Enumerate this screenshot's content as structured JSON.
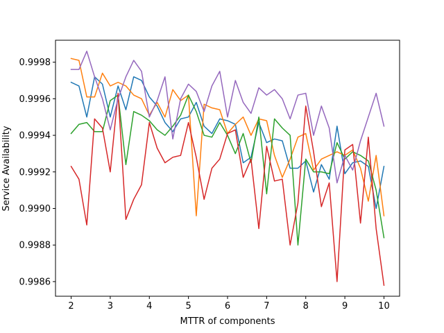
{
  "chart_data": {
    "type": "line",
    "title": "",
    "xlabel": "MTTR of components",
    "ylabel": "Service Availability",
    "xlim": [
      1.6,
      10.4
    ],
    "ylim": [
      0.99852,
      0.99992
    ],
    "xticks": [
      2,
      3,
      4,
      5,
      6,
      7,
      8,
      9,
      10
    ],
    "xtick_labels": [
      "2",
      "3",
      "4",
      "5",
      "6",
      "7",
      "8",
      "9",
      "10"
    ],
    "yticks": [
      0.9986,
      0.9988,
      0.999,
      0.9992,
      0.9994,
      0.9996,
      0.9998
    ],
    "ytick_labels": [
      "0.9986",
      "0.9988",
      "0.9990",
      "0.9992",
      "0.9994",
      "0.9996",
      "0.9998"
    ],
    "grid": false,
    "legend": "none",
    "x": [
      2.0,
      2.2,
      2.4,
      2.6,
      2.8,
      3.0,
      3.2,
      3.4,
      3.6,
      3.8,
      4.0,
      4.2,
      4.4,
      4.6,
      4.8,
      5.0,
      5.2,
      5.4,
      5.6,
      5.8,
      6.0,
      6.2,
      6.4,
      6.6,
      6.8,
      7.0,
      7.2,
      7.4,
      7.6,
      7.8,
      8.0,
      8.2,
      8.4,
      8.6,
      8.8,
      9.0,
      9.2,
      9.4,
      9.6,
      9.8,
      10.0
    ],
    "series": [
      {
        "color": "#1f77b4",
        "values": [
          0.99969,
          0.99967,
          0.9995,
          0.99972,
          0.99968,
          0.9995,
          0.99967,
          0.99954,
          0.99972,
          0.9997,
          0.99961,
          0.99956,
          0.99947,
          0.99942,
          0.99949,
          0.9995,
          0.99958,
          0.99945,
          0.99941,
          0.99949,
          0.99948,
          0.99946,
          0.99925,
          0.99928,
          0.99947,
          0.99936,
          0.99938,
          0.99937,
          0.99922,
          0.99922,
          0.99926,
          0.99909,
          0.99924,
          0.99916,
          0.99945,
          0.99919,
          0.99925,
          0.99926,
          0.99923,
          0.999,
          0.99923
        ]
      },
      {
        "color": "#ff7f0e",
        "values": [
          0.99982,
          0.99981,
          0.99961,
          0.99961,
          0.99974,
          0.99967,
          0.99969,
          0.99967,
          0.99962,
          0.9996,
          0.99951,
          0.99958,
          0.9995,
          0.99965,
          0.99959,
          0.99962,
          0.99896,
          0.99957,
          0.99955,
          0.99954,
          0.99941,
          0.99946,
          0.9995,
          0.9994,
          0.99949,
          0.99948,
          0.99929,
          0.99917,
          0.99927,
          0.99939,
          0.99941,
          0.99921,
          0.99927,
          0.99929,
          0.99931,
          0.99929,
          0.99932,
          0.99922,
          0.99904,
          0.99929,
          0.99896
        ]
      },
      {
        "color": "#2ca02c",
        "values": [
          0.99941,
          0.99946,
          0.99947,
          0.99942,
          0.99942,
          0.99959,
          0.99962,
          0.99924,
          0.99953,
          0.99951,
          0.99948,
          0.99943,
          0.9994,
          0.99945,
          0.99951,
          0.99962,
          0.99953,
          0.9994,
          0.99939,
          0.99947,
          0.9994,
          0.9993,
          0.99941,
          0.99925,
          0.9995,
          0.99908,
          0.99949,
          0.99944,
          0.9994,
          0.9988,
          0.99927,
          0.9992,
          0.9992,
          0.99919,
          0.99936,
          0.99927,
          0.99931,
          0.99929,
          0.99926,
          0.9991,
          0.99884
        ]
      },
      {
        "color": "#d62728",
        "values": [
          0.99923,
          0.99916,
          0.99891,
          0.99949,
          0.99944,
          0.9992,
          0.99963,
          0.99894,
          0.99905,
          0.99913,
          0.99947,
          0.99933,
          0.99925,
          0.99928,
          0.99929,
          0.99947,
          0.99928,
          0.99905,
          0.99922,
          0.99927,
          0.99941,
          0.99943,
          0.99917,
          0.99927,
          0.99889,
          0.99934,
          0.99915,
          0.99916,
          0.9988,
          0.99903,
          0.99956,
          0.99931,
          0.99901,
          0.99914,
          0.9986,
          0.99932,
          0.99935,
          0.99892,
          0.99939,
          0.99889,
          0.99858
        ]
      },
      {
        "color": "#9467bd",
        "values": [
          0.99976,
          0.99976,
          0.99986,
          0.99972,
          0.9996,
          0.99943,
          0.9996,
          0.99972,
          0.99981,
          0.99975,
          0.9995,
          0.99959,
          0.99972,
          0.99938,
          0.9996,
          0.99968,
          0.99964,
          0.99953,
          0.99967,
          0.99975,
          0.9995,
          0.9997,
          0.99958,
          0.99952,
          0.99966,
          0.99962,
          0.99965,
          0.9996,
          0.99949,
          0.99962,
          0.99963,
          0.9994,
          0.99956,
          0.99944,
          0.99914,
          0.99929,
          0.99921,
          0.99937,
          0.9995,
          0.99963,
          0.99945
        ]
      }
    ]
  }
}
